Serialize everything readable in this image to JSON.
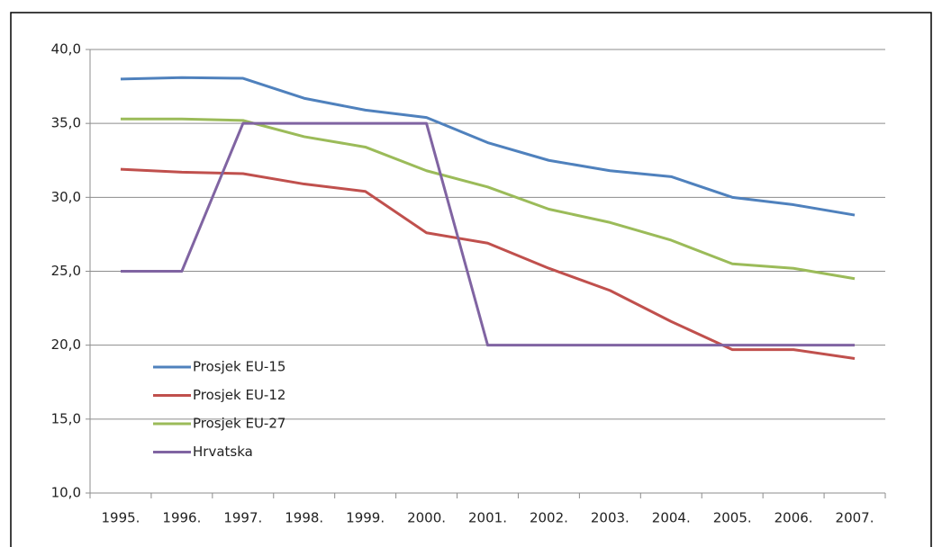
{
  "chart_data": {
    "type": "line",
    "categories": [
      "1995.",
      "1996.",
      "1997.",
      "1998.",
      "1999.",
      "2000.",
      "2001.",
      "2002.",
      "2003.",
      "2004.",
      "2005.",
      "2006.",
      "2007."
    ],
    "series": [
      {
        "name": "Prosjek EU-15",
        "color": "#4f81bd",
        "values": [
          38.0,
          38.1,
          38.05,
          36.7,
          35.9,
          35.4,
          33.7,
          32.5,
          31.8,
          31.4,
          30.0,
          29.5,
          28.8
        ]
      },
      {
        "name": "Prosjek EU-12",
        "color": "#c0504d",
        "values": [
          31.9,
          31.7,
          31.6,
          30.9,
          30.4,
          27.6,
          26.9,
          25.2,
          23.7,
          21.6,
          19.7,
          19.7,
          19.1
        ]
      },
      {
        "name": "Prosjek EU-27",
        "color": "#9bbb59",
        "values": [
          35.3,
          35.3,
          35.2,
          34.1,
          33.4,
          31.8,
          30.7,
          29.2,
          28.3,
          27.1,
          25.5,
          25.2,
          24.5
        ]
      },
      {
        "name": "Hrvatska",
        "color": "#8064a2",
        "values": [
          25,
          25,
          35,
          35,
          35,
          35,
          20,
          20,
          20,
          20,
          20,
          20,
          20
        ]
      }
    ],
    "ylim": [
      10,
      40
    ],
    "yticks": [
      {
        "value": 10,
        "label": "10,0"
      },
      {
        "value": 15,
        "label": "15,0"
      },
      {
        "value": 20,
        "label": "20,0"
      },
      {
        "value": 25,
        "label": "25,0"
      },
      {
        "value": 30,
        "label": "30,0"
      },
      {
        "value": 35,
        "label": "35,0"
      },
      {
        "value": 40,
        "label": "40,0"
      }
    ],
    "grid": true,
    "legend": "left"
  }
}
